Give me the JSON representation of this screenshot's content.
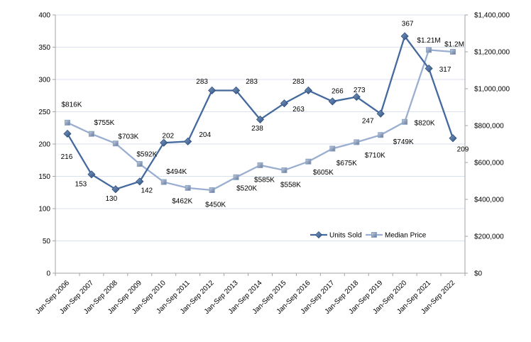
{
  "chart_data": {
    "type": "line",
    "title": "",
    "categories": [
      "Jan-Sep 2006",
      "Jan-Sep 2007",
      "Jan-Sep 2008",
      "Jan-Sep 2009",
      "Jan-Sep 2010",
      "Jan-Sep 2011",
      "Jan-Sep 2012",
      "Jan-Sep 2013",
      "Jan-Sep 2014",
      "Jan-Sep 2015",
      "Jan-Sep 2016",
      "Jan-Sep 2017",
      "Jan-Sep 2018",
      "Jan-Sep 2019",
      "Jan-Sep 2020",
      "Jan-Sep 2021",
      "Jan-Sep 2022"
    ],
    "series": [
      {
        "name": "Units Sold",
        "axis": "left",
        "marker": "diamond",
        "color": "#44699D",
        "z": 2,
        "values": [
          216,
          153,
          130,
          142,
          202,
          204,
          283,
          283,
          238,
          263,
          283,
          266,
          273,
          247,
          367,
          317,
          209
        ],
        "labels": [
          "216",
          "153",
          "130",
          "142",
          "202",
          "204",
          "283",
          "283",
          "238",
          "263",
          "283",
          "266",
          "273",
          "247",
          "367",
          "317",
          "209"
        ],
        "label_offsets": [
          [
            -1,
            32
          ],
          [
            -15,
            13
          ],
          [
            -6,
            13
          ],
          [
            10,
            12
          ],
          [
            6,
            -10
          ],
          [
            24,
            -10
          ],
          [
            -14,
            -13
          ],
          [
            22,
            -13
          ],
          [
            -4,
            12
          ],
          [
            20,
            8
          ],
          [
            -14,
            -13
          ],
          [
            7,
            -15
          ],
          [
            4,
            -10
          ],
          [
            -18,
            10
          ],
          [
            4,
            -18
          ],
          [
            23,
            1
          ],
          [
            14,
            15
          ]
        ]
      },
      {
        "name": "Median Price",
        "axis": "right",
        "marker": "square",
        "color": "#9AAED0",
        "z": 1,
        "values": [
          816000,
          755000,
          703000,
          592000,
          494000,
          462000,
          450000,
          520000,
          585000,
          558000,
          605000,
          675000,
          710000,
          749000,
          820000,
          1210000,
          1200000
        ],
        "labels": [
          "$816K",
          "$755K",
          "$703K",
          "$592K",
          "$494K",
          "$462K",
          "$450K",
          "$520K",
          "$585K",
          "$558K",
          "$605K",
          "$675K",
          "$710K",
          "$749K",
          "$820K",
          "$1.21M",
          "$1.2M"
        ],
        "label_offsets": [
          [
            6,
            -26
          ],
          [
            18,
            -16
          ],
          [
            18,
            -10
          ],
          [
            10,
            -14
          ],
          [
            18,
            -15
          ],
          [
            -8,
            18
          ],
          [
            5,
            20
          ],
          [
            15,
            15
          ],
          [
            6,
            20
          ],
          [
            9,
            20
          ],
          [
            21,
            15
          ],
          [
            20,
            20
          ],
          [
            26,
            18
          ],
          [
            32,
            9
          ],
          [
            28,
            1
          ],
          [
            0,
            -14
          ],
          [
            2,
            -11
          ]
        ]
      }
    ],
    "left_axis": {
      "min": 0,
      "max": 400,
      "step": 50,
      "labels": [
        "0",
        "50",
        "100",
        "150",
        "200",
        "250",
        "300",
        "350",
        "400"
      ]
    },
    "right_axis": {
      "min": 0,
      "max": 1400000,
      "step": 200000,
      "labels": [
        "$0",
        "$200,000",
        "$400,000",
        "$600,000",
        "$800,000",
        "$1,000,000",
        "$1,200,000",
        "$1,400,000"
      ]
    },
    "legend": {
      "position": "inside-bottom-right",
      "items": [
        "Units Sold",
        "Median Price"
      ]
    },
    "grid": true,
    "colors": {
      "background": "#ffffff",
      "gridline": "#D9E0EE",
      "axis_line": "#A3A3A3",
      "text": "#000000",
      "units_line": "#44699D",
      "units_marker_dark": "#2F4F7D",
      "units_marker_light": "#7E9CC6",
      "price_line": "#9AAED0",
      "price_marker_dark": "#5E7598",
      "price_marker_light": "#C7D1E2",
      "price_marker_stroke": "#8CA2C2"
    }
  }
}
